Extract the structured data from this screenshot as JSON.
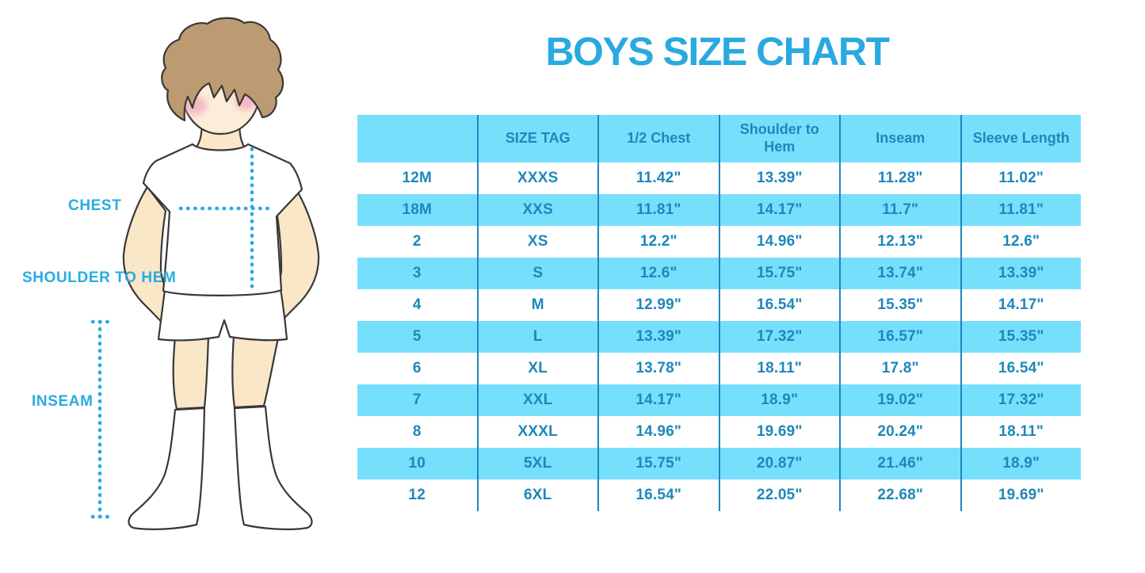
{
  "title": "BOYS SIZE CHART",
  "figure": {
    "labels": {
      "chest": "CHEST",
      "shoulder_to_hem": "SHOULDER TO HEM",
      "inseam": "INSEAM"
    }
  },
  "chart_data": {
    "type": "table",
    "title": "BOYS SIZE CHART",
    "columns": [
      "",
      "SIZE TAG",
      "1/2 Chest",
      "Shoulder to Hem",
      "Inseam",
      "Sleeve Length"
    ],
    "rows": [
      [
        "12M",
        "XXXS",
        "11.42\"",
        "13.39\"",
        "11.28\"",
        "11.02\""
      ],
      [
        "18M",
        "XXS",
        "11.81\"",
        "14.17\"",
        "11.7\"",
        "11.81\""
      ],
      [
        "2",
        "XS",
        "12.2\"",
        "14.96\"",
        "12.13\"",
        "12.6\""
      ],
      [
        "3",
        "S",
        "12.6\"",
        "15.75\"",
        "13.74\"",
        "13.39\""
      ],
      [
        "4",
        "M",
        "12.99\"",
        "16.54\"",
        "15.35\"",
        "14.17\""
      ],
      [
        "5",
        "L",
        "13.39\"",
        "17.32\"",
        "16.57\"",
        "15.35\""
      ],
      [
        "6",
        "XL",
        "13.78\"",
        "18.11\"",
        "17.8\"",
        "16.54\""
      ],
      [
        "7",
        "XXL",
        "14.17\"",
        "18.9\"",
        "19.02\"",
        "17.32\""
      ],
      [
        "8",
        "XXXL",
        "14.96\"",
        "19.69\"",
        "20.24\"",
        "18.11\""
      ],
      [
        "10",
        "5XL",
        "15.75\"",
        "20.87\"",
        "21.46\"",
        "18.9\""
      ],
      [
        "12",
        "6XL",
        "16.54\"",
        "22.05\"",
        "22.68\"",
        "19.69\""
      ]
    ],
    "units": "inches",
    "row_striping": "white / light-cyan alternating, header light-cyan"
  },
  "colors": {
    "accent": "#29A9E0",
    "table_text": "#1E87BB",
    "table_row_fill": "#76DFFC",
    "table_divider": "#1E87BB",
    "dotted_line": "#29ABE2",
    "skin": "#FAE7C8",
    "face": "#FCECD8",
    "hair": "#BD9B72",
    "blush": "#F2A7BC",
    "outline": "#383838"
  }
}
